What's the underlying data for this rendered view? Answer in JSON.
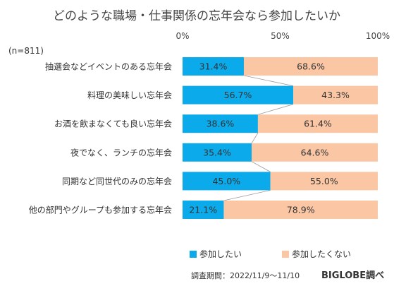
{
  "chart_data": {
    "type": "bar",
    "stacked": true,
    "orientation": "horizontal",
    "title": "どのような職場・仕事関係の忘年会なら参加したいか",
    "note": "(n=811)",
    "x_axis": {
      "min": 0,
      "max": 100,
      "ticks": [
        "0%",
        "50%",
        "100%"
      ]
    },
    "categories": [
      "抽選会などイベントのある忘年会",
      "料理の美味しい忘年会",
      "お酒を飲まなくても良い忘年会",
      "夜でなく、ランチの忘年会",
      "同期など同世代のみの忘年会",
      "他の部門やグループも参加する忘年会"
    ],
    "series": [
      {
        "name": "参加したい",
        "color": "#0aaaeb",
        "values": [
          31.4,
          56.7,
          38.6,
          35.4,
          45.0,
          21.1
        ],
        "labels": [
          "31.4%",
          "56.7%",
          "38.6%",
          "35.4%",
          "45.0%",
          "21.1%"
        ]
      },
      {
        "name": "参加したくない",
        "color": "#fbc6a4",
        "values": [
          68.6,
          43.3,
          61.4,
          64.6,
          55.0,
          78.9
        ],
        "labels": [
          "68.6%",
          "43.3%",
          "61.4%",
          "64.6%",
          "55.0%",
          "78.9%"
        ]
      }
    ],
    "legend_position": "bottom",
    "survey_period": "調査期間：2022/11/9～11/10",
    "source": "BIGLOBE調べ"
  }
}
